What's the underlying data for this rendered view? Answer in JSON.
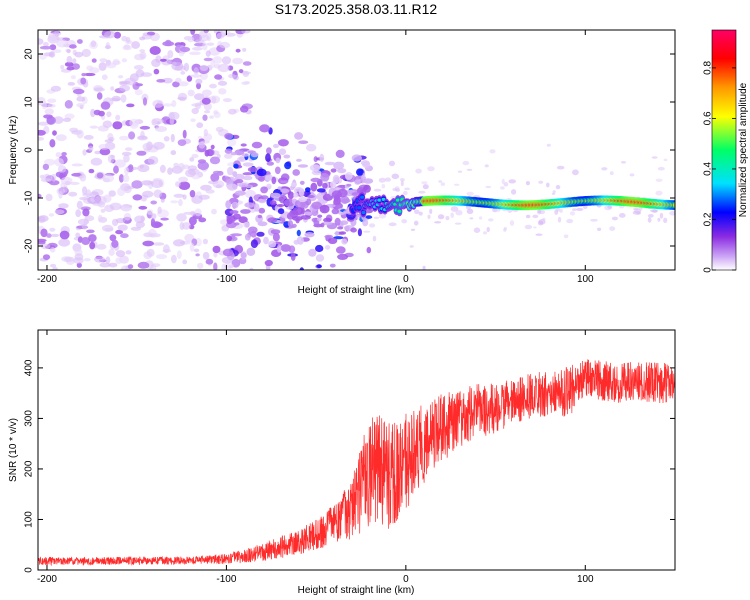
{
  "figure": {
    "title": "S173.2025.358.03.11.R12"
  },
  "chart_data": [
    {
      "type": "heatmap",
      "xlabel": "Height of straight line (km)",
      "ylabel": "Frequency (Hz)",
      "xlim": [
        -205,
        150
      ],
      "ylim": [
        -25,
        25
      ],
      "xticks": [
        -200,
        -100,
        0,
        100
      ],
      "yticks": [
        -20,
        -10,
        0,
        10,
        20
      ],
      "grid": false,
      "colorbar": {
        "label": "Normalized spectral amplitude",
        "range": [
          0,
          0.95
        ],
        "ticks": [
          0,
          0.2,
          0.4,
          0.6,
          0.8
        ],
        "colormap": "rainbow: white-violet-blue-cyan-green-yellow-orange-red-magenta",
        "colors": [
          "#ffffff",
          "#c9a0f5",
          "#8a2be2",
          "#0000ff",
          "#00e0ff",
          "#00ff66",
          "#ffff00",
          "#ff9900",
          "#ff0000",
          "#ff0066"
        ]
      },
      "features": {
        "noise_region_x": [
          -205,
          -100
        ],
        "noise_frequency_range": [
          -25,
          25
        ],
        "transition_region_x": [
          -100,
          -30
        ],
        "transition_center_frequency": -11,
        "tone_start_x": -30,
        "tone_frequency": -11,
        "tone_x_range": [
          -30,
          150
        ]
      }
    },
    {
      "type": "line",
      "xlabel": "Height of straight line (km)",
      "ylabel": "SNR (10 * v/v)",
      "xlim": [
        -205,
        150
      ],
      "ylim": [
        0,
        475
      ],
      "xticks": [
        -200,
        -100,
        0,
        100
      ],
      "yticks": [
        0,
        100,
        200,
        300,
        400
      ],
      "grid": false,
      "series": [
        {
          "color": "#ff2a2a",
          "x": [
            -205,
            -180,
            -160,
            -140,
            -120,
            -100,
            -90,
            -80,
            -70,
            -60,
            -50,
            -40,
            -30,
            -25,
            -20,
            -15,
            -10,
            -5,
            0,
            5,
            10,
            15,
            20,
            30,
            40,
            50,
            60,
            70,
            80,
            85,
            90,
            95,
            100,
            110,
            120,
            130,
            140,
            150
          ],
          "mean": [
            18,
            17,
            18,
            18,
            19,
            22,
            28,
            35,
            45,
            55,
            70,
            90,
            120,
            160,
            200,
            200,
            180,
            190,
            210,
            230,
            250,
            270,
            280,
            300,
            315,
            320,
            335,
            345,
            350,
            355,
            350,
            370,
            380,
            375,
            370,
            375,
            370,
            370
          ],
          "spread": [
            8,
            8,
            8,
            8,
            8,
            10,
            14,
            18,
            22,
            25,
            30,
            40,
            60,
            90,
            110,
            110,
            110,
            110,
            100,
            90,
            80,
            75,
            70,
            60,
            55,
            50,
            45,
            45,
            45,
            40,
            60,
            40,
            40,
            40,
            40,
            40,
            40,
            40
          ]
        }
      ]
    }
  ]
}
